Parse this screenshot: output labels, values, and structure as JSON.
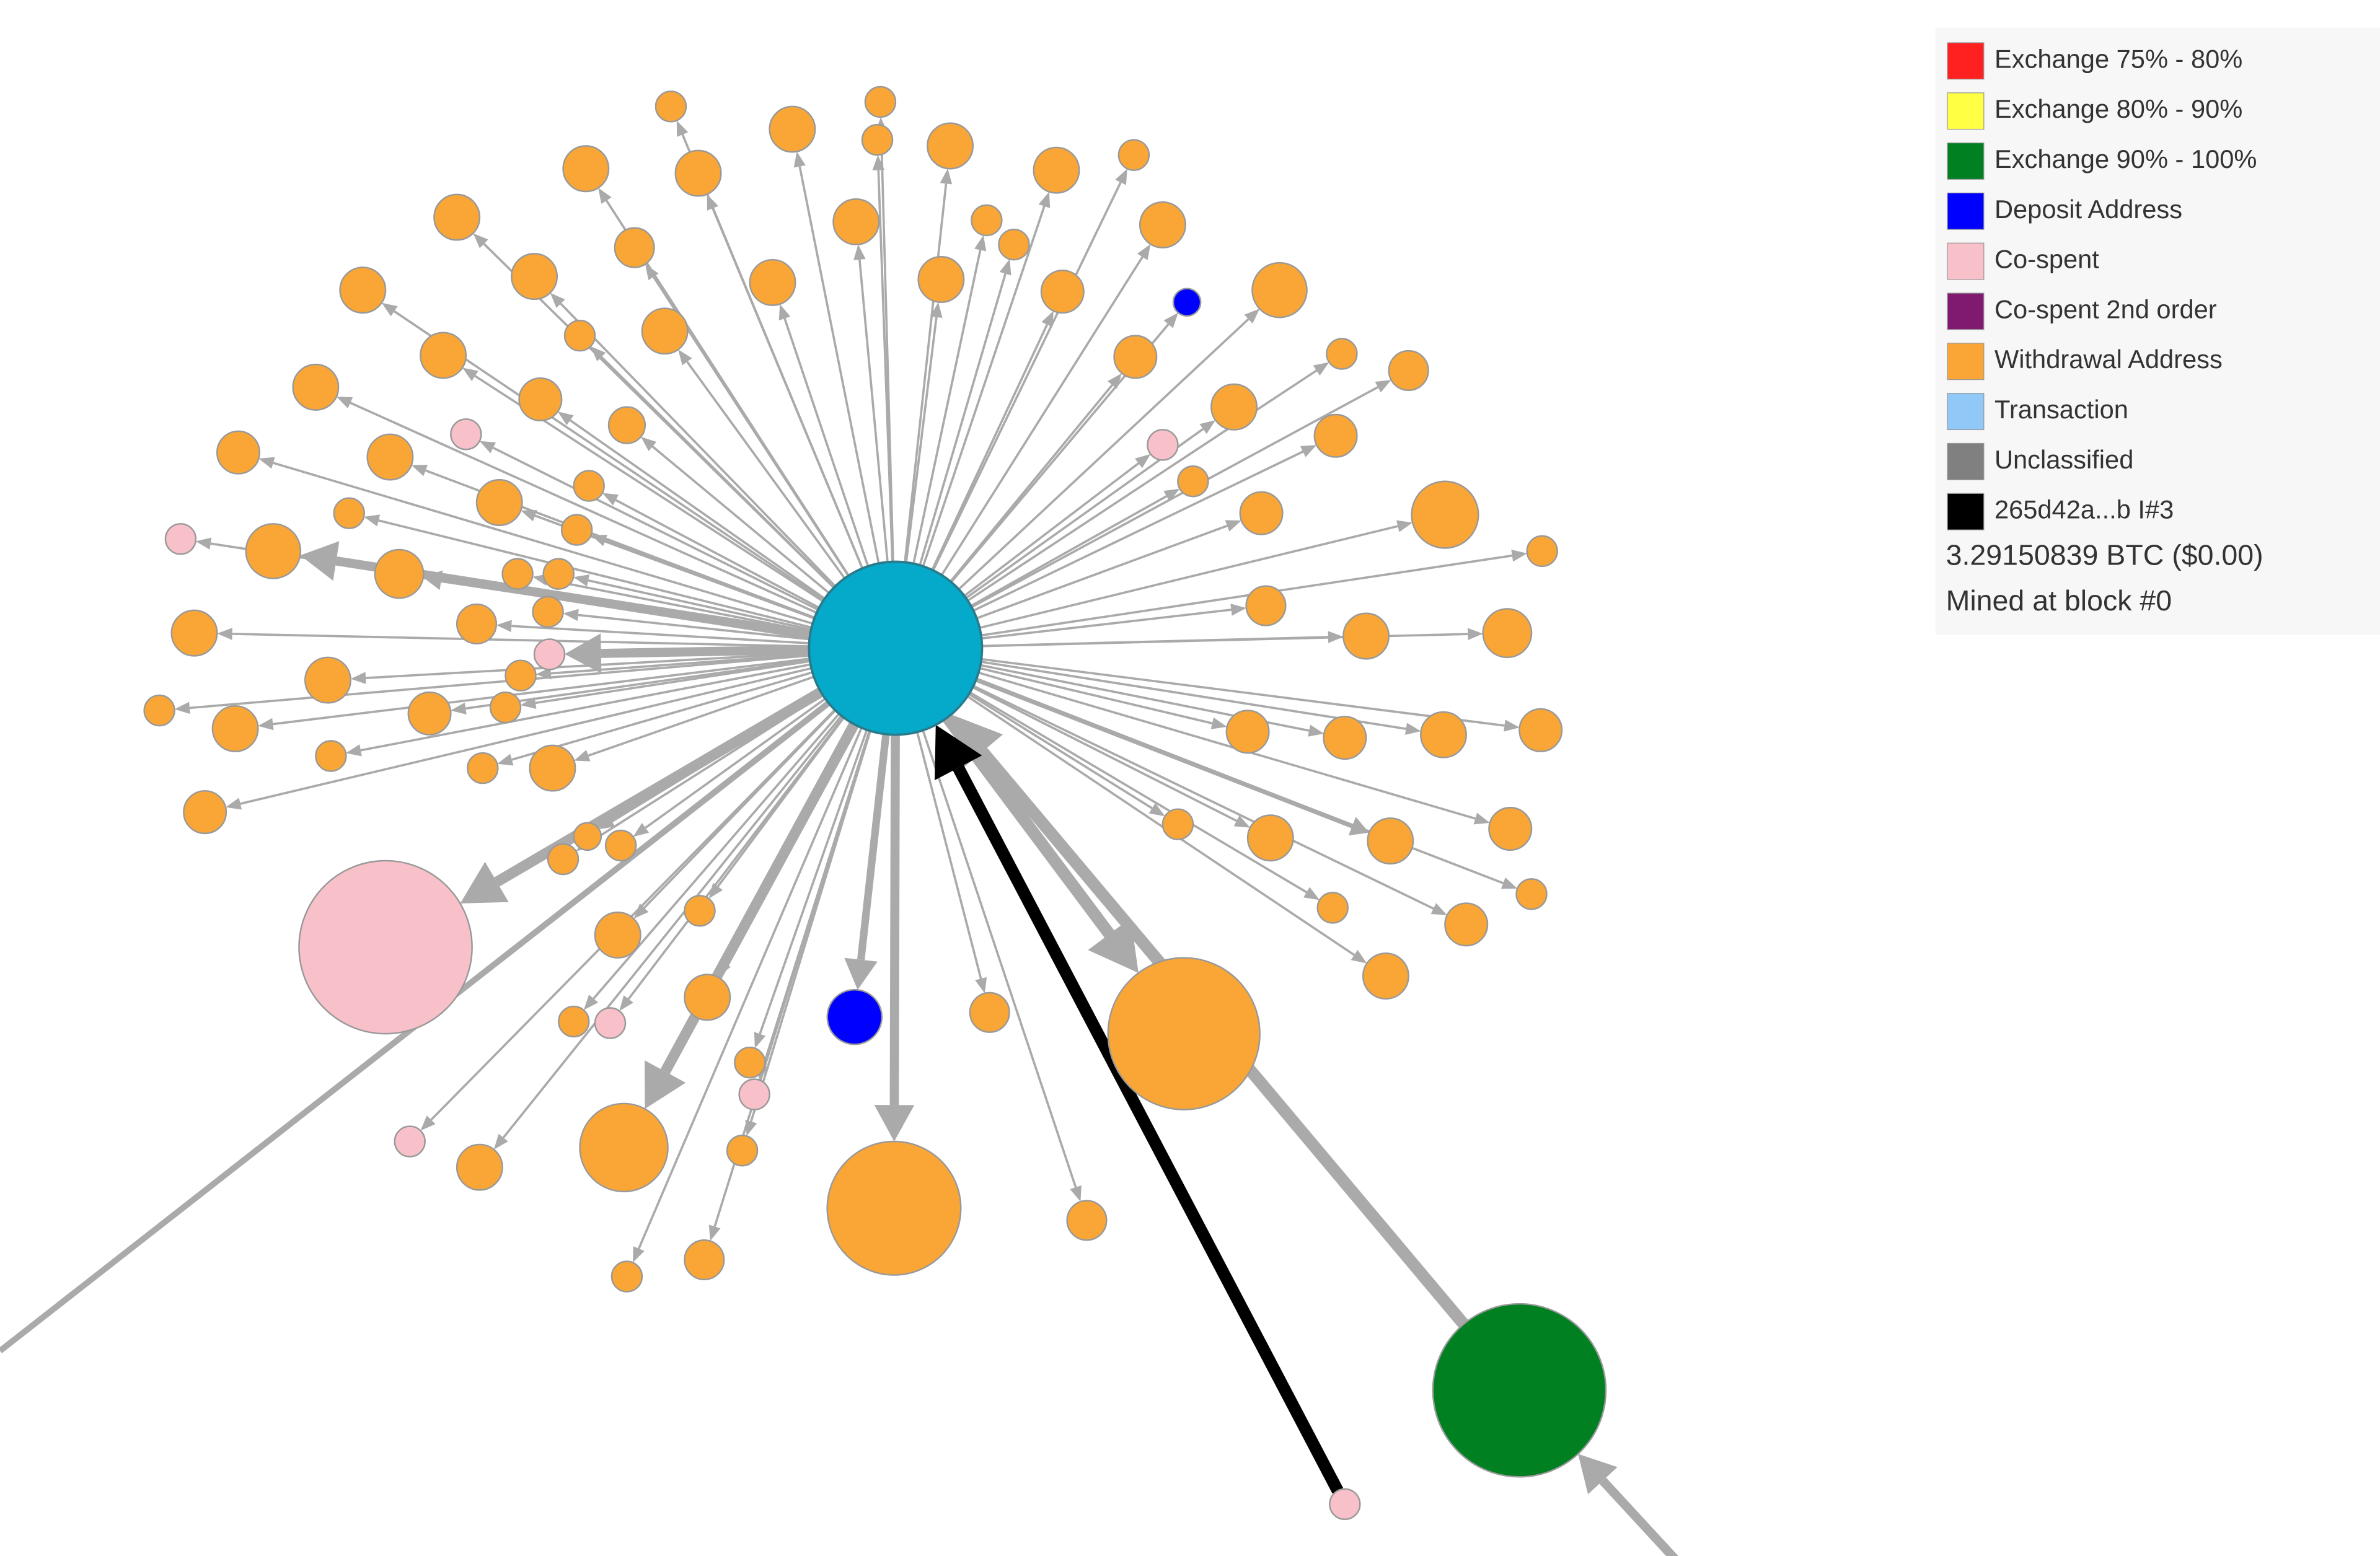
{
  "legend": {
    "items": [
      {
        "label": "Exchange 75% - 80%",
        "color": "#ff2020"
      },
      {
        "label": "Exchange 80% - 90%",
        "color": "#ffff44"
      },
      {
        "label": "Exchange 90% - 100%",
        "color": "#008020"
      },
      {
        "label": "Deposit Address",
        "color": "#0000ff"
      },
      {
        "label": "Co-spent",
        "color": "#f8c0c8"
      },
      {
        "label": "Co-spent 2nd order",
        "color": "#801a70"
      },
      {
        "label": "Withdrawal Address",
        "color": "#f9a636"
      },
      {
        "label": "Transaction",
        "color": "#90c8f8"
      },
      {
        "label": "Unclassified",
        "color": "#808080"
      },
      {
        "label": "265d42a...b I#3",
        "color": "#000000"
      }
    ]
  },
  "info": {
    "amount": "3.29150839 BTC ($0.00)",
    "mined": "Mined at block #0"
  }
}
